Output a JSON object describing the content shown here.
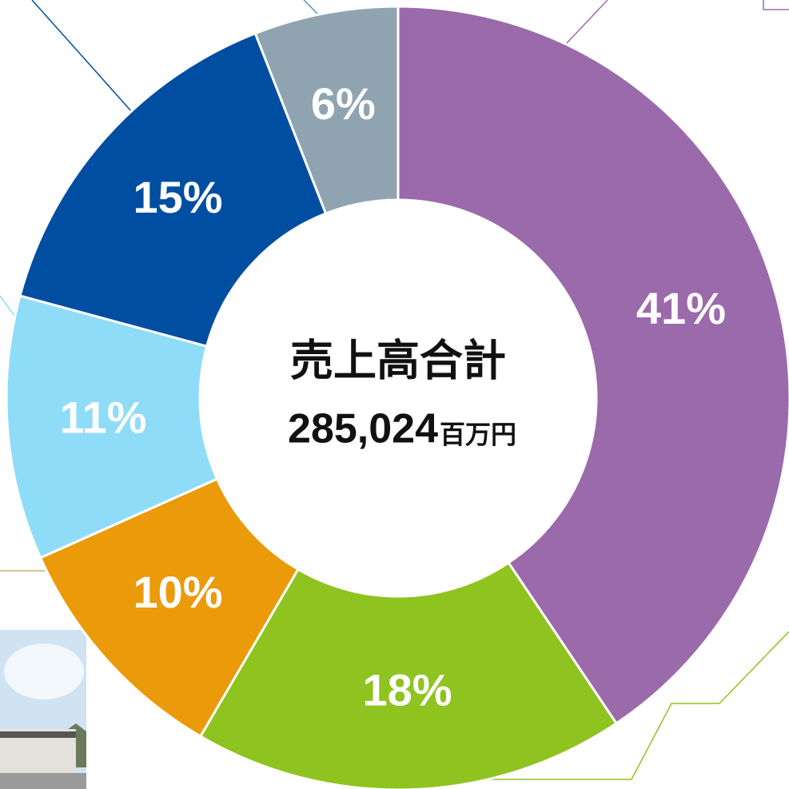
{
  "chart_data": {
    "type": "donut",
    "center_title": "売上高合計",
    "total": {
      "value": 285024,
      "label": "285,024"
    },
    "total_unit": "百万円",
    "values": [
      41,
      18,
      10,
      11,
      15,
      6
    ],
    "value_labels": [
      "41%",
      "18%",
      "10%",
      "11%",
      "15%",
      "6%"
    ],
    "colors": [
      "#9b6aab",
      "#8fc31f",
      "#eb9a0a",
      "#8fdcf9",
      "#004ea2",
      "#8fa3b1"
    ]
  }
}
